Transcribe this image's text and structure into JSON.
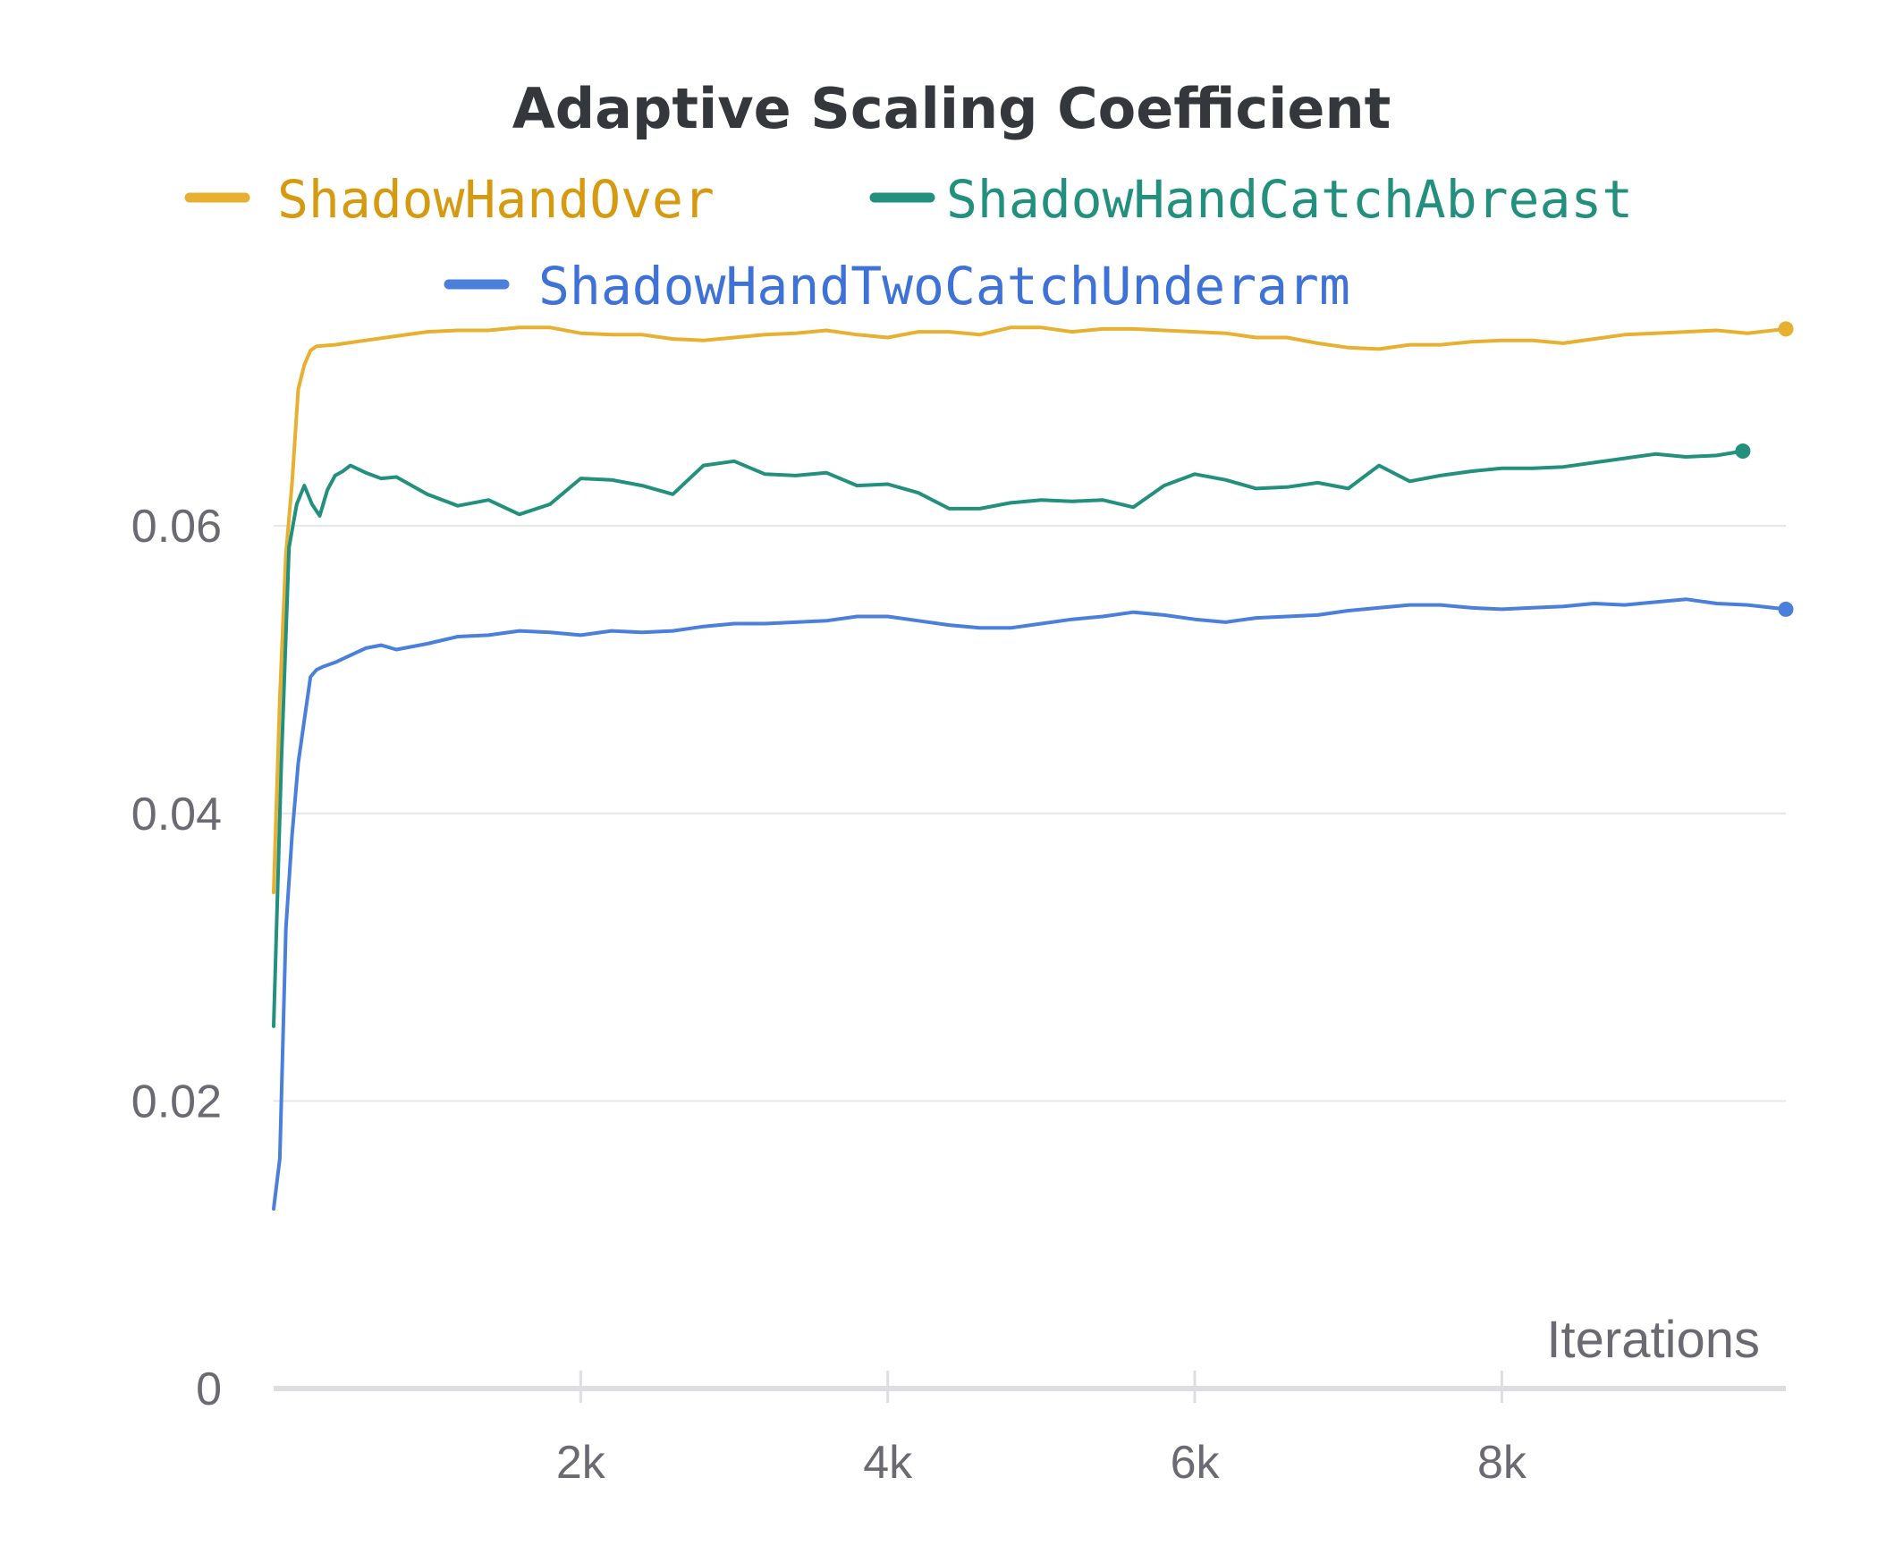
{
  "chart_data": {
    "type": "line",
    "title": "Adaptive Scaling Coefficient",
    "xlabel": "Iterations",
    "ylabel": "",
    "xlim": [
      0,
      9850
    ],
    "ylim": [
      0,
      0.0745
    ],
    "x_ticks": [
      {
        "value": 2000,
        "label": "2k"
      },
      {
        "value": 4000,
        "label": "4k"
      },
      {
        "value": 6000,
        "label": "6k"
      },
      {
        "value": 8000,
        "label": "8k"
      }
    ],
    "y_ticks": [
      {
        "value": 0,
        "label": "0"
      },
      {
        "value": 0.02,
        "label": "0.02"
      },
      {
        "value": 0.04,
        "label": "0.04"
      },
      {
        "value": 0.06,
        "label": "0.06"
      }
    ],
    "grid": true,
    "legend_position": "top",
    "series": [
      {
        "name": "ShadowHandOver",
        "color": "#e8b030",
        "text_color": "#d59a10",
        "x": [
          0,
          40,
          80,
          120,
          160,
          200,
          240,
          280,
          400,
          600,
          800,
          1000,
          1200,
          1400,
          1600,
          1800,
          2000,
          2200,
          2400,
          2600,
          2800,
          3000,
          3200,
          3400,
          3600,
          3800,
          4000,
          4200,
          4400,
          4600,
          4800,
          5000,
          5200,
          5400,
          5600,
          5800,
          6000,
          6200,
          6400,
          6600,
          6800,
          7000,
          7200,
          7400,
          7600,
          7800,
          8000,
          8200,
          8400,
          8600,
          8800,
          9000,
          9200,
          9400,
          9600,
          9850
        ],
        "y": [
          0.0345,
          0.048,
          0.058,
          0.063,
          0.0695,
          0.0712,
          0.0722,
          0.0725,
          0.0726,
          0.0729,
          0.0732,
          0.0735,
          0.0736,
          0.0736,
          0.0738,
          0.0738,
          0.0734,
          0.0733,
          0.0733,
          0.073,
          0.0729,
          0.0731,
          0.0733,
          0.0734,
          0.0736,
          0.0733,
          0.0731,
          0.0735,
          0.0735,
          0.0733,
          0.0738,
          0.0738,
          0.0735,
          0.0737,
          0.0737,
          0.0736,
          0.0735,
          0.0734,
          0.0731,
          0.0731,
          0.0727,
          0.0724,
          0.0723,
          0.0726,
          0.0726,
          0.0728,
          0.0729,
          0.0729,
          0.0727,
          0.073,
          0.0733,
          0.0734,
          0.0735,
          0.0736,
          0.0734,
          0.0737
        ]
      },
      {
        "name": "ShadowHandCatchAbreast",
        "color": "#23907d",
        "text_color": "#23907d",
        "x": [
          0,
          50,
          100,
          150,
          200,
          250,
          300,
          350,
          400,
          450,
          500,
          600,
          700,
          800,
          1000,
          1200,
          1400,
          1600,
          1800,
          2000,
          2200,
          2400,
          2600,
          2800,
          3000,
          3200,
          3400,
          3600,
          3800,
          4000,
          4200,
          4400,
          4600,
          4800,
          5000,
          5200,
          5400,
          5600,
          5800,
          6000,
          6200,
          6400,
          6600,
          6800,
          7000,
          7200,
          7400,
          7600,
          7800,
          8000,
          8200,
          8400,
          8600,
          8800,
          9000,
          9200,
          9400,
          9570
        ],
        "y": [
          0.0252,
          0.0435,
          0.0585,
          0.0615,
          0.0628,
          0.0615,
          0.0607,
          0.0625,
          0.0635,
          0.0638,
          0.0642,
          0.0637,
          0.0633,
          0.0634,
          0.0622,
          0.0614,
          0.0618,
          0.0608,
          0.0615,
          0.0633,
          0.0632,
          0.0628,
          0.0622,
          0.0642,
          0.0645,
          0.0636,
          0.0635,
          0.0637,
          0.0628,
          0.0629,
          0.0623,
          0.0612,
          0.0612,
          0.0616,
          0.0618,
          0.0617,
          0.0618,
          0.0613,
          0.0628,
          0.0636,
          0.0632,
          0.0626,
          0.0627,
          0.063,
          0.0626,
          0.0642,
          0.0631,
          0.0635,
          0.0638,
          0.064,
          0.064,
          0.0641,
          0.0644,
          0.0647,
          0.065,
          0.0648,
          0.0649,
          0.0652
        ]
      },
      {
        "name": "ShadowHandTwoCatchUnderarm",
        "color": "#4a7fdc",
        "text_color": "#3f72d6",
        "x": [
          0,
          40,
          80,
          120,
          160,
          200,
          240,
          280,
          320,
          400,
          500,
          600,
          700,
          800,
          1000,
          1200,
          1400,
          1600,
          1800,
          2000,
          2200,
          2400,
          2600,
          2800,
          3000,
          3200,
          3400,
          3600,
          3800,
          4000,
          4200,
          4400,
          4600,
          4800,
          5000,
          5200,
          5400,
          5600,
          5800,
          6000,
          6200,
          6400,
          6600,
          6800,
          7000,
          7200,
          7400,
          7600,
          7800,
          8000,
          8200,
          8400,
          8600,
          8800,
          9000,
          9200,
          9400,
          9600,
          9850
        ],
        "y": [
          0.0125,
          0.016,
          0.032,
          0.0385,
          0.0435,
          0.0465,
          0.0495,
          0.05,
          0.0502,
          0.0505,
          0.051,
          0.0515,
          0.0517,
          0.0514,
          0.0518,
          0.0523,
          0.0524,
          0.0527,
          0.0526,
          0.0524,
          0.0527,
          0.0526,
          0.0527,
          0.053,
          0.0532,
          0.0532,
          0.0533,
          0.0534,
          0.0537,
          0.0537,
          0.0534,
          0.0531,
          0.0529,
          0.0529,
          0.0532,
          0.0535,
          0.0537,
          0.054,
          0.0538,
          0.0535,
          0.0533,
          0.0536,
          0.0537,
          0.0538,
          0.0541,
          0.0543,
          0.0545,
          0.0545,
          0.0543,
          0.0542,
          0.0543,
          0.0544,
          0.0546,
          0.0545,
          0.0547,
          0.0549,
          0.0546,
          0.0545,
          0.0542
        ]
      }
    ]
  }
}
